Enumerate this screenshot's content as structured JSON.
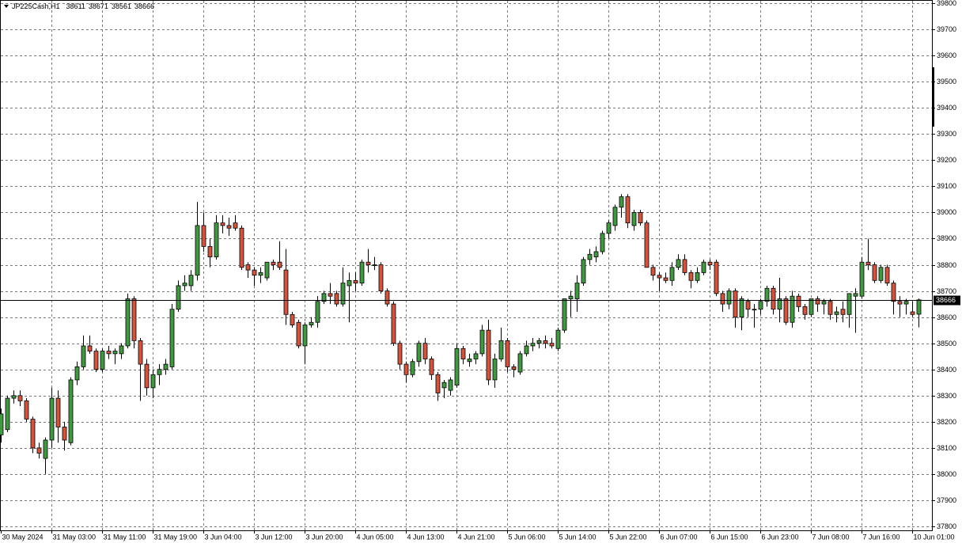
{
  "chart_data": {
    "type": "candlestick",
    "title": "JP225Cash,H1",
    "categories": [
      "30 May 2024",
      null,
      null,
      null,
      null,
      null,
      null,
      null,
      "31 May 03:00",
      null,
      null,
      null,
      null,
      null,
      null,
      null,
      "31 May 11:00",
      null,
      null,
      null,
      null,
      null,
      null,
      null,
      "31 May 19:00",
      null,
      null,
      null,
      null,
      null,
      null,
      null,
      "3 Jun 04:00",
      null,
      null,
      null,
      null,
      null,
      null,
      null,
      "3 Jun 12:00",
      null,
      null,
      null,
      null,
      null,
      null,
      null,
      "3 Jun 20:00",
      null,
      null,
      null,
      null,
      null,
      null,
      null,
      "4 Jun 05:00",
      null,
      null,
      null,
      null,
      null,
      null,
      null,
      "4 Jun 13:00",
      null,
      null,
      null,
      null,
      null,
      null,
      null,
      "4 Jun 21:00",
      null,
      null,
      null,
      null,
      null,
      null,
      null,
      "5 Jun 06:00",
      null,
      null,
      null,
      null,
      null,
      null,
      null,
      "5 Jun 14:00",
      null,
      null,
      null,
      null,
      null,
      null,
      null,
      "5 Jun 22:00",
      null,
      null,
      null,
      null,
      null,
      null,
      null,
      "6 Jun 07:00",
      null,
      null,
      null,
      null,
      null,
      null,
      null,
      "6 Jun 15:00",
      null,
      null,
      null,
      null,
      null,
      null,
      null,
      "6 Jun 23:00",
      null,
      null,
      null,
      null,
      null,
      null,
      null,
      "7 Jun 08:00",
      null,
      null,
      null,
      null,
      null,
      null,
      null,
      "7 Jun 16:00",
      null,
      null,
      null,
      null,
      null,
      null,
      null,
      "10 Jun 01:00",
      null
    ],
    "open": [
      38150,
      38170,
      38290,
      38300,
      38280,
      38210,
      38100,
      38060,
      38130,
      38290,
      38180,
      38120,
      38360,
      38410,
      38490,
      38470,
      38400,
      38470,
      38460,
      38460,
      38490,
      38670,
      38510,
      38420,
      38330,
      38380,
      38400,
      38410,
      38630,
      38720,
      38720,
      38760,
      38950,
      38870,
      38830,
      38960,
      38950,
      38960,
      38940,
      38800,
      38780,
      38760,
      38750,
      38810,
      38810,
      38780,
      38610,
      38580,
      38490,
      38570,
      38580,
      38660,
      38690,
      38690,
      38650,
      38720,
      38740,
      38730,
      38810,
      38800,
      38800,
      38700,
      38650,
      38500,
      38420,
      38380,
      38430,
      38500,
      38440,
      38380,
      38330,
      38320,
      38340,
      38480,
      38430,
      38440,
      38460,
      38550,
      38360,
      38440,
      38510,
      38410,
      38390,
      38460,
      38490,
      38500,
      38510,
      38500,
      38480,
      38550,
      38670,
      38670,
      38730,
      38820,
      38830,
      38850,
      38920,
      38950,
      39020,
      39060,
      38950,
      39000,
      38960,
      38790,
      38760,
      38750,
      38740,
      38790,
      38820,
      38770,
      38740,
      38770,
      38810,
      38810,
      38690,
      38650,
      38700,
      38600,
      38660,
      38630,
      38630,
      38660,
      38710,
      38630,
      38670,
      38580,
      38680,
      38640,
      38610,
      38670,
      38650,
      38660,
      38610,
      38630,
      38610,
      38680,
      38680,
      38810,
      38800,
      38740,
      38790,
      38730,
      38660,
      38650,
      38620,
      38611
    ],
    "high": [
      38250,
      38300,
      38320,
      38320,
      38290,
      38220,
      38120,
      38140,
      38330,
      38320,
      38200,
      38370,
      38430,
      38530,
      38530,
      38480,
      38480,
      38490,
      38480,
      38500,
      38690,
      38680,
      38520,
      38440,
      38400,
      38420,
      38440,
      38650,
      38740,
      38760,
      38780,
      39040,
      39000,
      38900,
      38990,
      38990,
      38980,
      38990,
      38950,
      38810,
      38790,
      38790,
      38810,
      38820,
      38890,
      38860,
      38620,
      38590,
      38580,
      38600,
      38680,
      38700,
      38730,
      38700,
      38790,
      38770,
      38770,
      38820,
      38860,
      38830,
      38810,
      38710,
      38660,
      38510,
      38430,
      38440,
      38510,
      38520,
      38450,
      38390,
      38360,
      38370,
      38500,
      38490,
      38460,
      38470,
      38570,
      38590,
      38460,
      38560,
      38520,
      38420,
      38470,
      38510,
      38520,
      38520,
      38530,
      38520,
      38560,
      38670,
      38700,
      38760,
      38830,
      38860,
      38870,
      38930,
      38970,
      39030,
      39070,
      39070,
      39010,
      39010,
      38970,
      38800,
      38770,
      38770,
      38810,
      38840,
      38840,
      38780,
      38790,
      38820,
      38820,
      38820,
      38700,
      38710,
      38710,
      38680,
      38670,
      38650,
      38670,
      38720,
      38720,
      38750,
      38680,
      38700,
      38690,
      38650,
      38670,
      38680,
      38670,
      38670,
      38640,
      38660,
      38690,
      38710,
      38830,
      38900,
      38810,
      38800,
      38800,
      38740,
      38680,
      38670,
      38660,
      38671
    ],
    "low": [
      38120,
      38160,
      38270,
      38260,
      38200,
      38080,
      38060,
      38000,
      38100,
      38120,
      38090,
      38110,
      38340,
      38400,
      38460,
      38390,
      38390,
      38440,
      38420,
      38440,
      38480,
      38480,
      38280,
      38300,
      38290,
      38340,
      38380,
      38400,
      38620,
      38700,
      38700,
      38740,
      38850,
      38790,
      38820,
      38920,
      38910,
      38930,
      38780,
      38750,
      38720,
      38730,
      38740,
      38780,
      38780,
      38570,
      38560,
      38480,
      38420,
      38560,
      38560,
      38650,
      38650,
      38640,
      38640,
      38580,
      38700,
      38720,
      38770,
      38780,
      38690,
      38640,
      38490,
      38400,
      38350,
      38370,
      38410,
      38420,
      38360,
      38280,
      38290,
      38300,
      38330,
      38420,
      38410,
      38420,
      38450,
      38340,
      38330,
      38430,
      38390,
      38370,
      38380,
      38450,
      38470,
      38480,
      38480,
      38480,
      38470,
      38540,
      38600,
      38620,
      38720,
      38800,
      38810,
      38840,
      38900,
      38930,
      38980,
      38940,
      38930,
      38950,
      38790,
      38740,
      38700,
      38730,
      38720,
      38780,
      38760,
      38710,
      38730,
      38760,
      38780,
      38680,
      38620,
      38630,
      38560,
      38550,
      38600,
      38560,
      38610,
      38640,
      38610,
      38580,
      38570,
      38560,
      38620,
      38590,
      38600,
      38620,
      38610,
      38590,
      38580,
      38580,
      38560,
      38540,
      38670,
      38780,
      38730,
      38730,
      38720,
      38610,
      38600,
      38610,
      38600,
      38561
    ],
    "close": [
      38230,
      38290,
      38300,
      38280,
      38210,
      38100,
      38080,
      38130,
      38290,
      38180,
      38130,
      38360,
      38410,
      38490,
      38470,
      38400,
      38470,
      38460,
      38470,
      38490,
      38670,
      38510,
      38420,
      38330,
      38380,
      38400,
      38420,
      38630,
      38720,
      38730,
      38760,
      38950,
      38870,
      38830,
      38960,
      38950,
      38940,
      38940,
      38790,
      38780,
      38760,
      38770,
      38810,
      38800,
      38790,
      38610,
      38570,
      38490,
      38570,
      38580,
      38660,
      38690,
      38680,
      38650,
      38730,
      38740,
      38730,
      38810,
      38800,
      38800,
      38700,
      38650,
      38500,
      38420,
      38380,
      38430,
      38500,
      38440,
      38380,
      38310,
      38350,
      38360,
      38480,
      38440,
      38440,
      38460,
      38550,
      38360,
      38440,
      38510,
      38410,
      38400,
      38460,
      38490,
      38500,
      38510,
      38500,
      38490,
      38550,
      38670,
      38680,
      38730,
      38820,
      38840,
      38850,
      38920,
      38960,
      39020,
      39060,
      38960,
      39000,
      38960,
      38790,
      38760,
      38750,
      38740,
      38790,
      38820,
      38770,
      38740,
      38770,
      38810,
      38800,
      38690,
      38650,
      38700,
      38600,
      38670,
      38630,
      38630,
      38660,
      38710,
      38630,
      38670,
      38580,
      38680,
      38640,
      38610,
      38670,
      38650,
      38660,
      38610,
      38620,
      38610,
      38690,
      38690,
      38810,
      38800,
      38740,
      38790,
      38730,
      38660,
      38650,
      38660,
      38610,
      38666
    ],
    "up_color": "#3f9a3f",
    "down_color": "#d4533a",
    "ylim": [
      37785,
      39812
    ],
    "yticks": [
      39800,
      39700,
      39600,
      39500,
      39400,
      39300,
      39200,
      39100,
      39000,
      38900,
      38800,
      38700,
      38600,
      38500,
      38400,
      38300,
      38200,
      38100,
      38000,
      37900,
      37800
    ],
    "grid": true
  }
}
